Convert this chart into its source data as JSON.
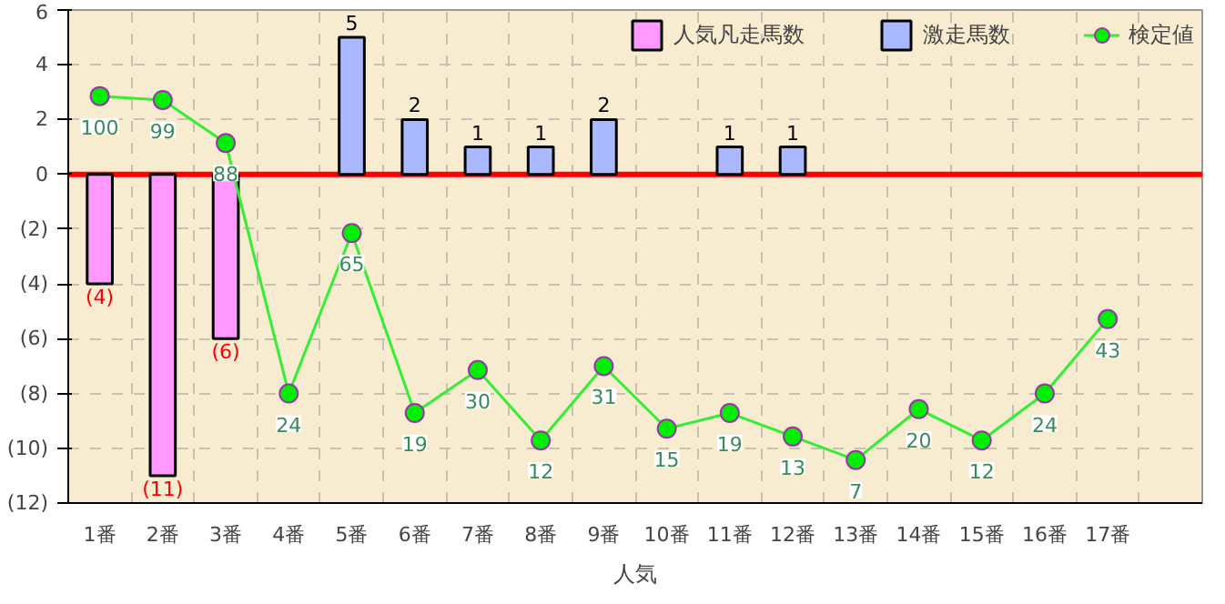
{
  "chart_data": {
    "type": "bar",
    "xlabel": "人気",
    "categories": [
      "1番",
      "2番",
      "3番",
      "4番",
      "5番",
      "6番",
      "7番",
      "8番",
      "9番",
      "10番",
      "11番",
      "12番",
      "13番",
      "14番",
      "15番",
      "16番",
      "17番",
      null
    ],
    "series": [
      {
        "name": "人気凡走馬数",
        "color": "#ff99ff",
        "values": [
          -4,
          -11,
          -6,
          null,
          null,
          null,
          null,
          null,
          null,
          null,
          null,
          null,
          null,
          null,
          null,
          null,
          null,
          null
        ],
        "value_labels": [
          "(4)",
          "(11)",
          "(6)",
          null,
          null,
          null,
          null,
          null,
          null,
          null,
          null,
          null,
          null,
          null,
          null,
          null,
          null,
          null
        ]
      },
      {
        "name": "激走馬数",
        "color": "#aab8ff",
        "values": [
          null,
          null,
          null,
          null,
          5,
          2,
          1,
          1,
          2,
          null,
          1,
          1,
          null,
          null,
          null,
          null,
          null,
          null
        ],
        "value_labels": [
          null,
          null,
          null,
          null,
          "5",
          "2",
          "1",
          "1",
          "2",
          null,
          "1",
          "1",
          null,
          null,
          null,
          null,
          null,
          null
        ]
      },
      {
        "name": "検定値",
        "type": "line",
        "axis": "y2",
        "color": "#33ee33",
        "marker": "circle",
        "values": [
          100,
          99,
          88,
          24,
          65,
          19,
          30,
          12,
          31,
          15,
          19,
          13,
          7,
          20,
          12,
          24,
          43,
          null
        ],
        "value_labels": [
          "100",
          "99",
          "88",
          "24",
          "65",
          "19",
          "30",
          "12",
          "31",
          "15",
          "19",
          "13",
          "7",
          "20",
          "12",
          "24",
          "43",
          null
        ]
      }
    ],
    "ylim": [
      -12,
      6
    ],
    "yticks": [
      {
        "value": -12,
        "label": "(12)"
      },
      {
        "value": -10,
        "label": "(10)"
      },
      {
        "value": -8,
        "label": "(8)"
      },
      {
        "value": -6,
        "label": "(6)"
      },
      {
        "value": -4,
        "label": "(4)"
      },
      {
        "value": -2,
        "label": "(2)"
      },
      0,
      2,
      4,
      6
    ],
    "y2lim": [
      -4,
      122
    ],
    "ref_lines": [
      {
        "axis": "y",
        "value": 0,
        "color": "#ff0000"
      }
    ],
    "grid": true,
    "legend": "top"
  }
}
